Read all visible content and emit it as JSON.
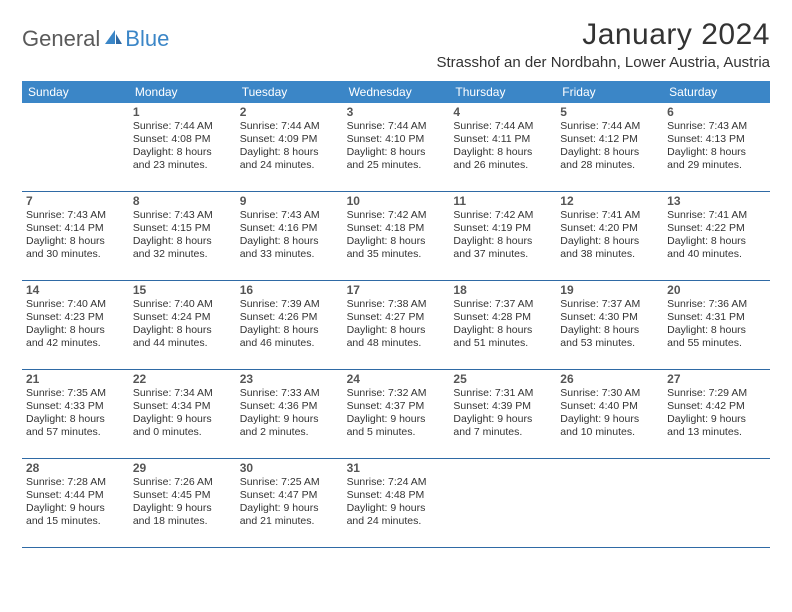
{
  "colors": {
    "header_bg": "#3b86c7",
    "header_text": "#ffffff",
    "row_divider": "#2f6aa5",
    "body_text": "#333333",
    "daynum_text": "#555555",
    "logo_gray": "#5a5a5a",
    "logo_blue": "#3b86c7",
    "page_bg": "#ffffff"
  },
  "typography": {
    "title_fontsize": 30,
    "location_fontsize": 15,
    "dow_fontsize": 12,
    "daynum_fontsize": 12,
    "body_fontsize": 10.5
  },
  "logo": {
    "general": "General",
    "blue": "Blue"
  },
  "title": "January 2024",
  "location": "Strasshof an der Nordbahn, Lower Austria, Austria",
  "days_of_week": [
    "Sunday",
    "Monday",
    "Tuesday",
    "Wednesday",
    "Thursday",
    "Friday",
    "Saturday"
  ],
  "weeks": [
    [
      {},
      {
        "n": "1",
        "sr": "Sunrise: 7:44 AM",
        "ss": "Sunset: 4:08 PM",
        "d1": "Daylight: 8 hours",
        "d2": "and 23 minutes."
      },
      {
        "n": "2",
        "sr": "Sunrise: 7:44 AM",
        "ss": "Sunset: 4:09 PM",
        "d1": "Daylight: 8 hours",
        "d2": "and 24 minutes."
      },
      {
        "n": "3",
        "sr": "Sunrise: 7:44 AM",
        "ss": "Sunset: 4:10 PM",
        "d1": "Daylight: 8 hours",
        "d2": "and 25 minutes."
      },
      {
        "n": "4",
        "sr": "Sunrise: 7:44 AM",
        "ss": "Sunset: 4:11 PM",
        "d1": "Daylight: 8 hours",
        "d2": "and 26 minutes."
      },
      {
        "n": "5",
        "sr": "Sunrise: 7:44 AM",
        "ss": "Sunset: 4:12 PM",
        "d1": "Daylight: 8 hours",
        "d2": "and 28 minutes."
      },
      {
        "n": "6",
        "sr": "Sunrise: 7:43 AM",
        "ss": "Sunset: 4:13 PM",
        "d1": "Daylight: 8 hours",
        "d2": "and 29 minutes."
      }
    ],
    [
      {
        "n": "7",
        "sr": "Sunrise: 7:43 AM",
        "ss": "Sunset: 4:14 PM",
        "d1": "Daylight: 8 hours",
        "d2": "and 30 minutes."
      },
      {
        "n": "8",
        "sr": "Sunrise: 7:43 AM",
        "ss": "Sunset: 4:15 PM",
        "d1": "Daylight: 8 hours",
        "d2": "and 32 minutes."
      },
      {
        "n": "9",
        "sr": "Sunrise: 7:43 AM",
        "ss": "Sunset: 4:16 PM",
        "d1": "Daylight: 8 hours",
        "d2": "and 33 minutes."
      },
      {
        "n": "10",
        "sr": "Sunrise: 7:42 AM",
        "ss": "Sunset: 4:18 PM",
        "d1": "Daylight: 8 hours",
        "d2": "and 35 minutes."
      },
      {
        "n": "11",
        "sr": "Sunrise: 7:42 AM",
        "ss": "Sunset: 4:19 PM",
        "d1": "Daylight: 8 hours",
        "d2": "and 37 minutes."
      },
      {
        "n": "12",
        "sr": "Sunrise: 7:41 AM",
        "ss": "Sunset: 4:20 PM",
        "d1": "Daylight: 8 hours",
        "d2": "and 38 minutes."
      },
      {
        "n": "13",
        "sr": "Sunrise: 7:41 AM",
        "ss": "Sunset: 4:22 PM",
        "d1": "Daylight: 8 hours",
        "d2": "and 40 minutes."
      }
    ],
    [
      {
        "n": "14",
        "sr": "Sunrise: 7:40 AM",
        "ss": "Sunset: 4:23 PM",
        "d1": "Daylight: 8 hours",
        "d2": "and 42 minutes."
      },
      {
        "n": "15",
        "sr": "Sunrise: 7:40 AM",
        "ss": "Sunset: 4:24 PM",
        "d1": "Daylight: 8 hours",
        "d2": "and 44 minutes."
      },
      {
        "n": "16",
        "sr": "Sunrise: 7:39 AM",
        "ss": "Sunset: 4:26 PM",
        "d1": "Daylight: 8 hours",
        "d2": "and 46 minutes."
      },
      {
        "n": "17",
        "sr": "Sunrise: 7:38 AM",
        "ss": "Sunset: 4:27 PM",
        "d1": "Daylight: 8 hours",
        "d2": "and 48 minutes."
      },
      {
        "n": "18",
        "sr": "Sunrise: 7:37 AM",
        "ss": "Sunset: 4:28 PM",
        "d1": "Daylight: 8 hours",
        "d2": "and 51 minutes."
      },
      {
        "n": "19",
        "sr": "Sunrise: 7:37 AM",
        "ss": "Sunset: 4:30 PM",
        "d1": "Daylight: 8 hours",
        "d2": "and 53 minutes."
      },
      {
        "n": "20",
        "sr": "Sunrise: 7:36 AM",
        "ss": "Sunset: 4:31 PM",
        "d1": "Daylight: 8 hours",
        "d2": "and 55 minutes."
      }
    ],
    [
      {
        "n": "21",
        "sr": "Sunrise: 7:35 AM",
        "ss": "Sunset: 4:33 PM",
        "d1": "Daylight: 8 hours",
        "d2": "and 57 minutes."
      },
      {
        "n": "22",
        "sr": "Sunrise: 7:34 AM",
        "ss": "Sunset: 4:34 PM",
        "d1": "Daylight: 9 hours",
        "d2": "and 0 minutes."
      },
      {
        "n": "23",
        "sr": "Sunrise: 7:33 AM",
        "ss": "Sunset: 4:36 PM",
        "d1": "Daylight: 9 hours",
        "d2": "and 2 minutes."
      },
      {
        "n": "24",
        "sr": "Sunrise: 7:32 AM",
        "ss": "Sunset: 4:37 PM",
        "d1": "Daylight: 9 hours",
        "d2": "and 5 minutes."
      },
      {
        "n": "25",
        "sr": "Sunrise: 7:31 AM",
        "ss": "Sunset: 4:39 PM",
        "d1": "Daylight: 9 hours",
        "d2": "and 7 minutes."
      },
      {
        "n": "26",
        "sr": "Sunrise: 7:30 AM",
        "ss": "Sunset: 4:40 PM",
        "d1": "Daylight: 9 hours",
        "d2": "and 10 minutes."
      },
      {
        "n": "27",
        "sr": "Sunrise: 7:29 AM",
        "ss": "Sunset: 4:42 PM",
        "d1": "Daylight: 9 hours",
        "d2": "and 13 minutes."
      }
    ],
    [
      {
        "n": "28",
        "sr": "Sunrise: 7:28 AM",
        "ss": "Sunset: 4:44 PM",
        "d1": "Daylight: 9 hours",
        "d2": "and 15 minutes."
      },
      {
        "n": "29",
        "sr": "Sunrise: 7:26 AM",
        "ss": "Sunset: 4:45 PM",
        "d1": "Daylight: 9 hours",
        "d2": "and 18 minutes."
      },
      {
        "n": "30",
        "sr": "Sunrise: 7:25 AM",
        "ss": "Sunset: 4:47 PM",
        "d1": "Daylight: 9 hours",
        "d2": "and 21 minutes."
      },
      {
        "n": "31",
        "sr": "Sunrise: 7:24 AM",
        "ss": "Sunset: 4:48 PM",
        "d1": "Daylight: 9 hours",
        "d2": "and 24 minutes."
      },
      {},
      {},
      {}
    ]
  ]
}
